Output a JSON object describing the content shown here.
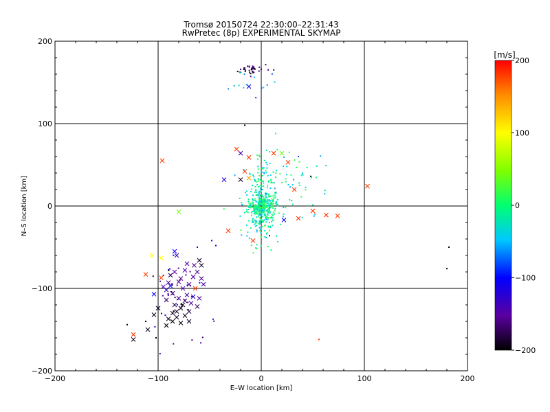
{
  "chart_data": {
    "type": "scatter",
    "title": "Tromsø 20150724 22:30:00–22:31:43",
    "subtitle": "RwPretec (8p) EXPERIMENTAL SKYMAP",
    "xlabel": "E–W location [km]",
    "ylabel": "N–S location [km]",
    "xlim": [
      -200,
      200
    ],
    "ylim": [
      -200,
      200
    ],
    "xticks": [
      "−200",
      "−100",
      "0",
      "100",
      "200"
    ],
    "yticks": [
      "−200",
      "−100",
      "0",
      "100",
      "200"
    ],
    "grid_x": [
      -100,
      0,
      100
    ],
    "grid_y": [
      -100,
      0,
      100
    ],
    "colorbar": {
      "label": "[m/s]",
      "min": -200,
      "max": 200,
      "ticks": [
        "−200",
        "−100",
        "0",
        "100",
        "200"
      ]
    },
    "x_markers": [
      {
        "x": -24,
        "y": 69,
        "v": 180
      },
      {
        "x": -12,
        "y": 59,
        "v": 180
      },
      {
        "x": -20,
        "y": 64,
        "v": -140
      },
      {
        "x": 12,
        "y": 64,
        "v": 180
      },
      {
        "x": 20,
        "y": 64,
        "v": 40
      },
      {
        "x": 26,
        "y": 53,
        "v": 180
      },
      {
        "x": -16,
        "y": 42,
        "v": 180
      },
      {
        "x": -36,
        "y": 32,
        "v": -110
      },
      {
        "x": -20,
        "y": 32,
        "v": -190
      },
      {
        "x": -12,
        "y": 34,
        "v": 140
      },
      {
        "x": 32,
        "y": 20,
        "v": 180
      },
      {
        "x": 103,
        "y": 24,
        "v": 180
      },
      {
        "x": 50,
        "y": -6,
        "v": 180
      },
      {
        "x": 63,
        "y": -11,
        "v": 180
      },
      {
        "x": 74,
        "y": -12,
        "v": 180
      },
      {
        "x": 36,
        "y": -15,
        "v": 180
      },
      {
        "x": 22,
        "y": -17,
        "v": -100
      },
      {
        "x": -32,
        "y": -30,
        "v": 180
      },
      {
        "x": -8,
        "y": -42,
        "v": 180
      },
      {
        "x": -12,
        "y": 145,
        "v": -110
      },
      {
        "x": -96,
        "y": 55,
        "v": 180
      },
      {
        "x": -80,
        "y": -7,
        "v": 40
      },
      {
        "x": -106,
        "y": -60,
        "v": 100
      },
      {
        "x": -97,
        "y": -63,
        "v": 100
      },
      {
        "x": -112,
        "y": -83,
        "v": 180
      },
      {
        "x": -97,
        "y": -87,
        "v": 180
      },
      {
        "x": -84,
        "y": -55,
        "v": -110
      },
      {
        "x": -82,
        "y": -60,
        "v": -130
      },
      {
        "x": -72,
        "y": -70,
        "v": -150
      },
      {
        "x": -65,
        "y": -72,
        "v": -160
      },
      {
        "x": -62,
        "y": -80,
        "v": -160
      },
      {
        "x": -58,
        "y": -72,
        "v": -190
      },
      {
        "x": -74,
        "y": -78,
        "v": -150
      },
      {
        "x": -78,
        "y": -88,
        "v": -160
      },
      {
        "x": -66,
        "y": -86,
        "v": -150
      },
      {
        "x": -70,
        "y": -95,
        "v": -160
      },
      {
        "x": -76,
        "y": -100,
        "v": -150
      },
      {
        "x": -90,
        "y": -93,
        "v": -160
      },
      {
        "x": -95,
        "y": -98,
        "v": -150
      },
      {
        "x": -92,
        "y": -102,
        "v": -130
      },
      {
        "x": -86,
        "y": -106,
        "v": -170
      },
      {
        "x": -80,
        "y": -112,
        "v": -160
      },
      {
        "x": -72,
        "y": -108,
        "v": -160
      },
      {
        "x": -64,
        "y": -100,
        "v": 180
      },
      {
        "x": -58,
        "y": -88,
        "v": -160
      },
      {
        "x": -60,
        "y": -112,
        "v": -150
      },
      {
        "x": -68,
        "y": -118,
        "v": -150
      },
      {
        "x": -74,
        "y": -115,
        "v": -170
      },
      {
        "x": -84,
        "y": -120,
        "v": -180
      },
      {
        "x": -78,
        "y": -124,
        "v": -190
      },
      {
        "x": -70,
        "y": -128,
        "v": -180
      },
      {
        "x": -62,
        "y": -122,
        "v": -170
      },
      {
        "x": -74,
        "y": -133,
        "v": -190
      },
      {
        "x": -82,
        "y": -135,
        "v": -190
      },
      {
        "x": -86,
        "y": -140,
        "v": -200
      },
      {
        "x": -90,
        "y": -137,
        "v": -190
      },
      {
        "x": -78,
        "y": -142,
        "v": -200
      },
      {
        "x": -70,
        "y": -140,
        "v": -190
      },
      {
        "x": -86,
        "y": -130,
        "v": -190
      },
      {
        "x": -92,
        "y": -145,
        "v": -200
      },
      {
        "x": -100,
        "y": -124,
        "v": -190
      },
      {
        "x": -104,
        "y": -107,
        "v": -100
      },
      {
        "x": -88,
        "y": -97,
        "v": -110
      },
      {
        "x": -84,
        "y": -80,
        "v": -150
      },
      {
        "x": -80,
        "y": -92,
        "v": -150
      },
      {
        "x": -92,
        "y": -114,
        "v": -170
      },
      {
        "x": -82,
        "y": -128,
        "v": -190
      },
      {
        "x": -76,
        "y": -120,
        "v": -190
      },
      {
        "x": -66,
        "y": -110,
        "v": -120
      },
      {
        "x": -56,
        "y": -95,
        "v": -140
      },
      {
        "x": -60,
        "y": -66,
        "v": -190
      },
      {
        "x": -88,
        "y": -84,
        "v": -170
      },
      {
        "x": -124,
        "y": -156,
        "v": 180
      },
      {
        "x": -124,
        "y": -162,
        "v": -190
      },
      {
        "x": -110,
        "y": -150,
        "v": -190
      },
      {
        "x": -104,
        "y": -132,
        "v": -190
      }
    ],
    "dot_clusters": [
      {
        "cx": 0,
        "cy": 0,
        "sx": 6,
        "sy": 8,
        "n": 260,
        "vmin": -40,
        "vmax": 25
      },
      {
        "cx": 0,
        "cy": 15,
        "sx": 9,
        "sy": 22,
        "n": 160,
        "vmin": -60,
        "vmax": 25
      },
      {
        "cx": -2,
        "cy": -20,
        "sx": 10,
        "sy": 16,
        "n": 90,
        "vmin": -60,
        "vmax": 30
      },
      {
        "cx": -10,
        "cy": 166,
        "sx": 8,
        "sy": 3,
        "n": 40,
        "vmin": -200,
        "vmax": -150
      },
      {
        "cx": -12,
        "cy": 150,
        "sx": 14,
        "sy": 10,
        "n": 14,
        "vmin": -100,
        "vmax": -20
      },
      {
        "cx": -80,
        "cy": -105,
        "sx": 16,
        "sy": 22,
        "n": 40,
        "vmin": -200,
        "vmax": -90
      },
      {
        "cx": 30,
        "cy": 30,
        "sx": 18,
        "sy": 22,
        "n": 50,
        "vmin": -60,
        "vmax": 20
      }
    ],
    "outlier_dots": [
      {
        "x": 56,
        "y": -162,
        "v": 180
      },
      {
        "x": 182,
        "y": -50,
        "v": -200
      },
      {
        "x": 180,
        "y": -76,
        "v": -200
      },
      {
        "x": -130,
        "y": -144,
        "v": -200
      },
      {
        "x": -102,
        "y": -160,
        "v": -200
      },
      {
        "x": -16,
        "y": 98,
        "v": -200
      },
      {
        "x": 48,
        "y": 36,
        "v": -200
      },
      {
        "x": 36,
        "y": 60,
        "v": -80
      },
      {
        "x": 14,
        "y": 88,
        "v": 20
      },
      {
        "x": -44,
        "y": -48,
        "v": -120
      },
      {
        "x": -48,
        "y": -42,
        "v": -100
      },
      {
        "x": -62,
        "y": -50,
        "v": -110
      },
      {
        "x": -112,
        "y": -140,
        "v": -190
      },
      {
        "x": 8,
        "y": -36,
        "v": -190
      }
    ]
  }
}
